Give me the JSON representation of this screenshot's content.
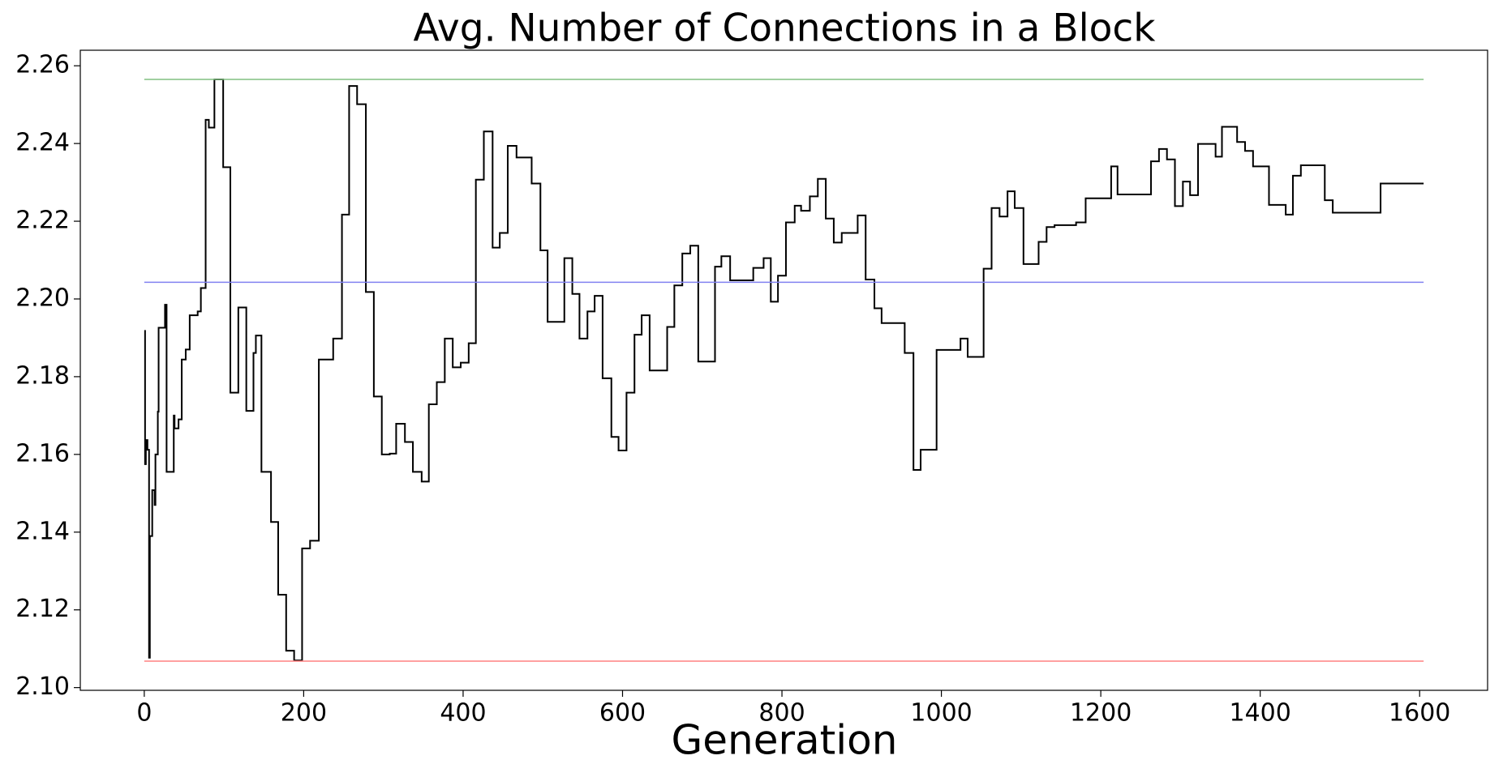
{
  "chart_data": {
    "type": "line",
    "title": "Avg. Number of Connections in a Block",
    "x_label": "Generation",
    "drawstyle": "steps-post",
    "grid": false,
    "xlim": [
      -80.25,
      1685.25
    ],
    "ylim": [
      2.0993,
      2.264
    ],
    "xticks": [
      0,
      200,
      400,
      600,
      800,
      1000,
      1200,
      1400,
      1600
    ],
    "yticks": [
      {
        "value": 2.1,
        "label": "2.10"
      },
      2.12,
      2.14,
      2.16,
      2.18,
      {
        "value": 2.2,
        "label": "2.20"
      },
      2.22,
      2.24,
      2.26
    ],
    "series": [
      {
        "color": "#000000",
        "x": [
          0,
          1,
          2,
          4,
          6,
          7,
          10,
          13,
          14,
          17,
          18,
          26,
          28,
          37,
          38,
          43,
          47,
          52,
          57,
          67,
          71,
          77,
          81,
          88,
          99,
          108,
          118,
          128,
          137,
          140,
          147,
          159,
          168,
          178,
          188,
          198,
          208,
          219,
          237,
          248,
          257,
          267,
          278,
          288,
          298,
          308,
          316,
          327,
          337,
          348,
          357,
          367,
          377,
          387,
          397,
          407,
          416,
          426,
          437,
          446,
          456,
          467,
          486,
          497,
          506,
          527,
          537,
          546,
          556,
          565,
          575,
          586,
          595,
          605,
          615,
          624,
          634,
          656,
          665,
          675,
          685,
          695,
          716,
          724,
          735,
          764,
          777,
          786,
          795,
          805,
          816,
          824,
          835,
          845,
          855,
          865,
          875,
          895,
          905,
          916,
          925,
          954,
          965,
          974,
          994,
          1024,
          1033,
          1053,
          1063,
          1073,
          1083,
          1092,
          1103,
          1122,
          1132,
          1142,
          1169,
          1181,
          1213,
          1221,
          1263,
          1273,
          1283,
          1293,
          1303,
          1312,
          1322,
          1344,
          1352,
          1371,
          1381,
          1391,
          1411,
          1432,
          1441,
          1451,
          1481,
          1491,
          1551,
          1605
        ],
        "values": [
          2.1918,
          2.1575,
          2.1637,
          2.1612,
          2.1077,
          2.139,
          2.1508,
          2.147,
          2.16,
          2.171,
          2.1926,
          2.1985,
          2.1555,
          2.17,
          2.1667,
          2.169,
          2.1844,
          2.187,
          2.1958,
          2.1968,
          2.2028,
          2.2461,
          2.2441,
          2.2565,
          2.2339,
          2.1759,
          2.1978,
          2.1712,
          2.1861,
          2.1906,
          2.1555,
          2.1426,
          2.1239,
          2.1095,
          2.107,
          2.1358,
          2.1378,
          2.1844,
          2.1898,
          2.2217,
          2.2548,
          2.2501,
          2.2018,
          2.1749,
          2.16,
          2.1602,
          2.1679,
          2.1632,
          2.1555,
          2.153,
          2.1729,
          2.1786,
          2.1898,
          2.1824,
          2.1836,
          2.1886,
          2.2307,
          2.2431,
          2.2132,
          2.217,
          2.2394,
          2.2364,
          2.2297,
          2.2125,
          2.1941,
          2.2105,
          2.2013,
          2.1898,
          2.1968,
          2.2008,
          2.1796,
          2.1645,
          2.161,
          2.1759,
          2.1908,
          2.1958,
          2.1816,
          2.1928,
          2.2035,
          2.2117,
          2.2137,
          2.1839,
          2.2083,
          2.211,
          2.2048,
          2.208,
          2.2105,
          2.1993,
          2.206,
          2.2197,
          2.224,
          2.2227,
          2.2264,
          2.2309,
          2.2207,
          2.2145,
          2.217,
          2.2215,
          2.205,
          2.1976,
          2.1938,
          2.1861,
          2.156,
          2.1612,
          2.1869,
          2.1898,
          2.1851,
          2.2078,
          2.2234,
          2.2212,
          2.2277,
          2.2234,
          2.209,
          2.2147,
          2.2185,
          2.219,
          2.2197,
          2.2259,
          2.2341,
          2.2269,
          2.2354,
          2.2386,
          2.2359,
          2.2239,
          2.2302,
          2.2267,
          2.2399,
          2.2366,
          2.2443,
          2.2404,
          2.2381,
          2.2341,
          2.2242,
          2.2217,
          2.2317,
          2.2344,
          2.2254,
          2.2222,
          2.2297,
          2.2297
        ]
      },
      {
        "color": "#80c080",
        "x": [
          0,
          1605
        ],
        "values": [
          2.2565,
          2.2565
        ]
      },
      {
        "color": "#8080f0",
        "x": [
          0,
          1605
        ],
        "values": [
          2.2043,
          2.2043
        ]
      },
      {
        "color": "#ff8080",
        "x": [
          0,
          1605
        ],
        "values": [
          2.1068,
          2.1068
        ]
      }
    ]
  }
}
